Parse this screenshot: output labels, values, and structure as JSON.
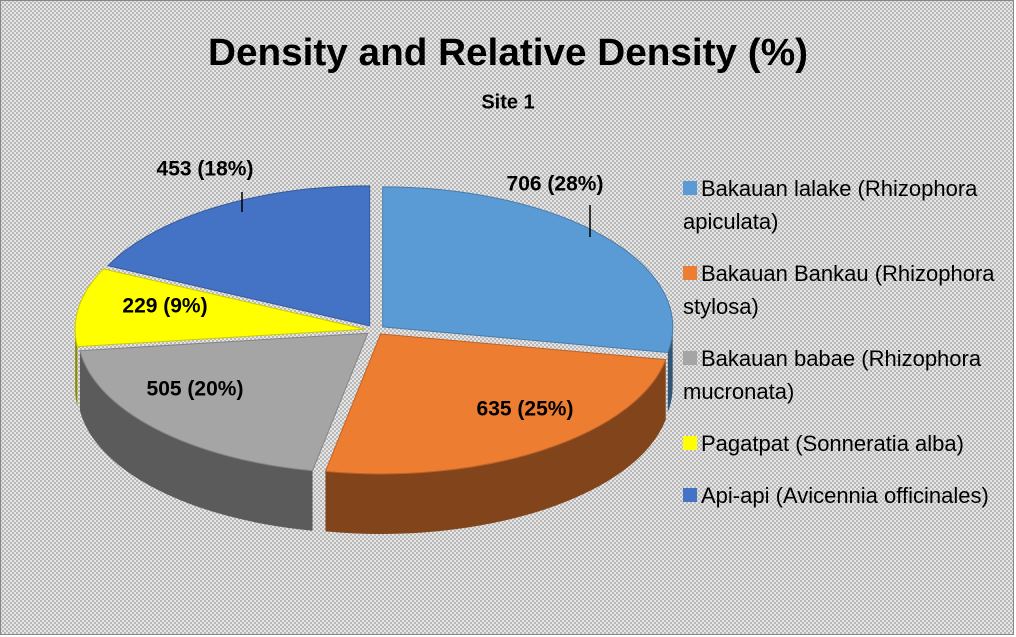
{
  "chart_data": {
    "type": "pie",
    "title": "Density and Relative Density (%)",
    "subtitle": "Site 1",
    "categories": [
      "Bakauan lalake (Rhizophora apiculata)",
      "Bakauan Bankau (Rhizophora stylosa)",
      "Bakauan babae (Rhizophora mucronata)",
      "Pagatpat (Sonneratia alba)",
      "Api-api (Avicennia officinales)"
    ],
    "values": [
      706,
      635,
      505,
      229,
      453
    ],
    "value_labels": [
      "706 (28%)",
      "635 (25%)",
      "505 (20%)",
      "229 (9%)",
      "453 (18%)"
    ],
    "colors": [
      "#5b9bd5",
      "#ed7d31",
      "#a5a5a5",
      "#ffff00",
      "#4472c4"
    ],
    "legend": "right"
  }
}
